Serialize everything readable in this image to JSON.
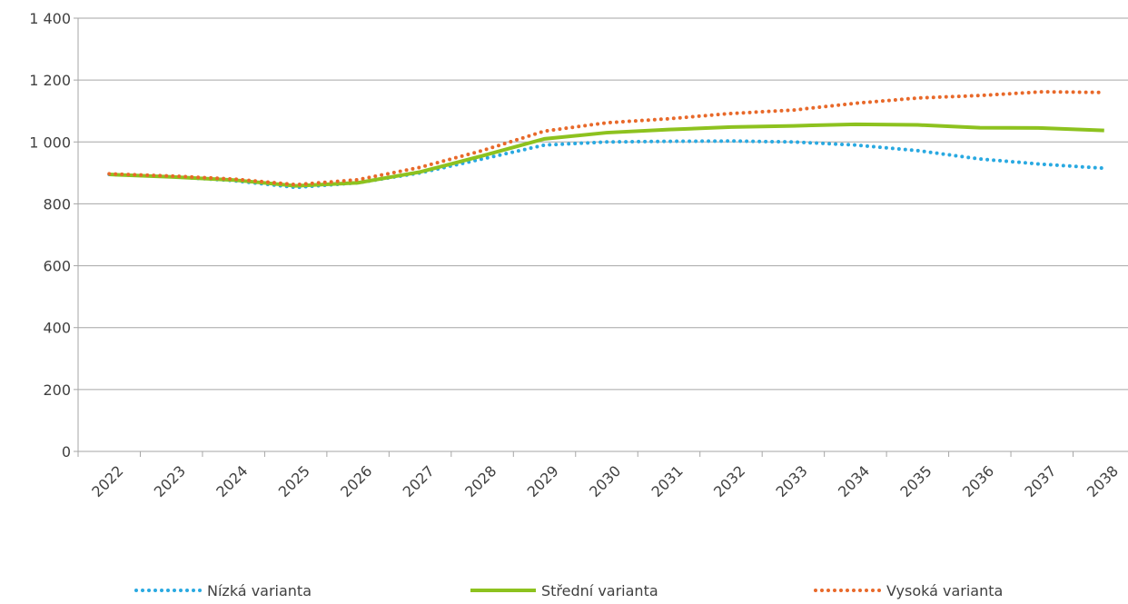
{
  "chart_data": {
    "type": "line",
    "categories": [
      "2022",
      "2023",
      "2024",
      "2025",
      "2026",
      "2027",
      "2028",
      "2029",
      "2030",
      "2031",
      "2032",
      "2033",
      "2034",
      "2035",
      "2036",
      "2037",
      "2038"
    ],
    "series": [
      {
        "name": "Nízká varianta",
        "color": "#29a9e1",
        "dash": "dotted",
        "values": [
          895,
          888,
          875,
          853,
          868,
          900,
          945,
          990,
          1000,
          1002,
          1003,
          1000,
          990,
          972,
          945,
          928,
          915
        ]
      },
      {
        "name": "Střední varianta",
        "color": "#8dc21f",
        "dash": "solid",
        "values": [
          895,
          887,
          877,
          858,
          868,
          903,
          955,
          1010,
          1030,
          1040,
          1048,
          1052,
          1057,
          1055,
          1046,
          1045,
          1037
        ]
      },
      {
        "name": "Vysoká varianta",
        "color": "#e8692a",
        "dash": "dotted",
        "values": [
          897,
          890,
          880,
          862,
          878,
          918,
          972,
          1035,
          1062,
          1075,
          1092,
          1103,
          1125,
          1142,
          1150,
          1162,
          1160
        ]
      }
    ],
    "ylim": [
      0,
      1400
    ],
    "yticks": [
      0,
      200,
      400,
      600,
      800,
      {
        "value": 1000,
        "label": "1 000"
      },
      {
        "value": 1200,
        "label": "1 200"
      },
      {
        "value": 1400,
        "label": "1 400"
      }
    ],
    "grid": true,
    "legend": "bottom"
  }
}
